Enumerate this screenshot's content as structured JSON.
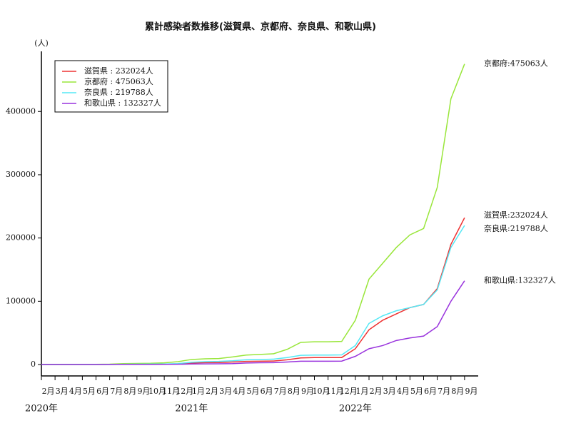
{
  "chart_data": {
    "type": "line",
    "title": "累計感染者数推移(滋賀県、京都府、奈良県、和歌山県)",
    "y_label": "(人)",
    "categories": [
      "2月",
      "3月",
      "4月",
      "5月",
      "6月",
      "7月",
      "8月",
      "9月",
      "10月",
      "11月",
      "12月",
      "1月",
      "2月",
      "3月",
      "4月",
      "5月",
      "6月",
      "7月",
      "8月",
      "9月",
      "10月",
      "11月",
      "12月",
      "1月",
      "2月",
      "3月",
      "4月",
      "5月",
      "6月",
      "7月",
      "8月",
      "9月"
    ],
    "year_labels": [
      "2020年",
      "2021年",
      "2022年"
    ],
    "ylim": [
      -18000,
      495000
    ],
    "yticks": [
      0,
      100000,
      200000,
      300000,
      400000
    ],
    "series": [
      {
        "name": "滋賀県",
        "legend_label": "滋賀県 : 232024人",
        "end_label": "滋賀県:232024人",
        "color": "#ee3333",
        "values": [
          0,
          5,
          100,
          100,
          100,
          120,
          450,
          500,
          550,
          700,
          1000,
          2500,
          3000,
          3200,
          4000,
          5000,
          5200,
          5500,
          7500,
          10500,
          11000,
          11000,
          11100,
          25000,
          55000,
          70000,
          80000,
          90000,
          95000,
          120000,
          190000,
          232024
        ]
      },
      {
        "name": "京都府",
        "legend_label": "京都府 : 475063人",
        "end_label": "京都府:475063人",
        "color": "#99e63a",
        "values": [
          0,
          50,
          300,
          360,
          370,
          600,
          1500,
          1800,
          2000,
          2700,
          4500,
          8000,
          9000,
          9500,
          12000,
          15000,
          16000,
          17000,
          24000,
          35000,
          36000,
          36000,
          36500,
          70000,
          135000,
          160000,
          185000,
          205000,
          215000,
          280000,
          420000,
          475063
        ]
      },
      {
        "name": "奈良県",
        "legend_label": "奈良県 : 219788人",
        "end_label": "奈良県:219788人",
        "color": "#55e8f5",
        "values": [
          0,
          10,
          80,
          90,
          90,
          150,
          500,
          600,
          700,
          900,
          1500,
          3500,
          4500,
          5000,
          6000,
          7500,
          8000,
          8500,
          11000,
          14500,
          15000,
          15000,
          15200,
          30000,
          65000,
          77000,
          85000,
          90000,
          95000,
          118000,
          185000,
          219788
        ]
      },
      {
        "name": "和歌山県",
        "legend_label": "和歌山県 : 132327人",
        "end_label": "和歌山県:132327人",
        "color": "#9933dd",
        "values": [
          0,
          10,
          60,
          60,
          60,
          100,
          200,
          220,
          250,
          300,
          400,
          900,
          1000,
          1100,
          1500,
          2500,
          2800,
          3000,
          4000,
          5200,
          5300,
          5300,
          5400,
          13000,
          25000,
          30000,
          38000,
          42000,
          45000,
          60000,
          100000,
          132327
        ]
      }
    ]
  }
}
